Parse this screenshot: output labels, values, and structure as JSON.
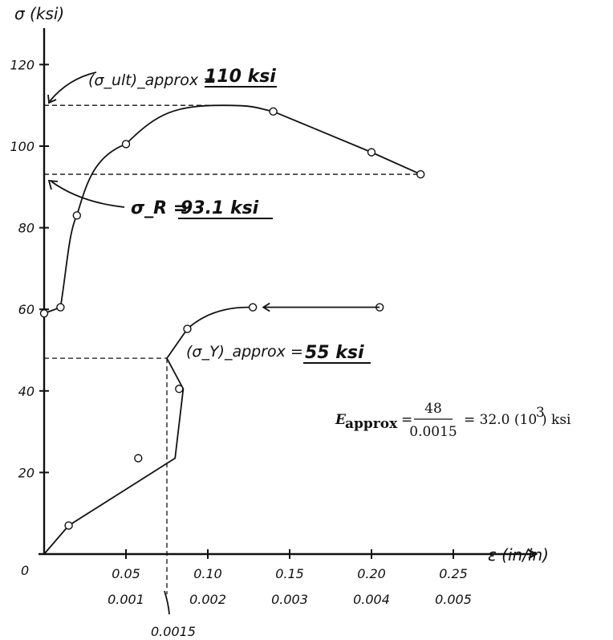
{
  "chart_data": {
    "type": "line",
    "ylabel": "σ (ksi)",
    "xlabel": "ε (in/in)",
    "origin_label": "0",
    "ylim": [
      0,
      130
    ],
    "y_ticks": [
      20,
      40,
      60,
      80,
      100,
      120
    ],
    "y_tick_labels": [
      "20",
      "40",
      "60",
      "80",
      "100",
      "120"
    ],
    "x_upper_range": [
      0,
      0.25
    ],
    "x_upper_ticks": [
      0.05,
      0.1,
      0.15,
      0.2,
      0.25
    ],
    "x_upper_tick_labels": [
      "0.05",
      "0.10",
      "0.15",
      "0.20",
      "0.25"
    ],
    "x_lower_range": [
      0,
      0.005
    ],
    "x_lower_ticks": [
      0.001,
      0.002,
      0.003,
      0.004,
      0.005
    ],
    "x_lower_tick_labels": [
      "0.001",
      "0.002",
      "0.003",
      "0.004",
      "0.005"
    ],
    "series": [
      {
        "scale": "upper",
        "x": [
          0,
          0.01,
          0.02,
          0.05,
          0.14,
          0.2,
          0.23
        ],
        "y": [
          59,
          60.5,
          83,
          100.5,
          108.5,
          98.5,
          93.1
        ]
      },
      {
        "scale": "lower",
        "x": [
          0,
          0.0003,
          0.0016,
          0.0017,
          0.00256,
          0.0025,
          0.0029,
          0.0024,
          0.0021,
          0.0007,
          0.00085,
          0.00125,
          0.00175,
          0.004
        ],
        "y": [
          0,
          7,
          23.5,
          40.5,
          55.2,
          60.5,
          60.5,
          60.5,
          60.5,
          60.5,
          60.5,
          60.5,
          60.5,
          60.5
        ]
      }
    ],
    "annotations": {
      "ult": {
        "label": "(σ_ult)_approx =",
        "value": "110 ksi",
        "y": 110
      },
      "rupture": {
        "label": "σ_R =",
        "value": "93.1 ksi",
        "y": 93.1
      },
      "yield": {
        "label": "(σ_Y)_approx =",
        "value": "55 ksi"
      },
      "proportional": {
        "x_label": "0.0015",
        "x": 0.0015,
        "y": 48
      }
    },
    "formula": {
      "lhs": "E",
      "lhs_sub": "approx",
      "numerator": "48",
      "denominator": "0.0015",
      "rhs": "= 32.0 (10",
      "rhs_exp": "3",
      "rhs_tail": ") ksi"
    }
  }
}
